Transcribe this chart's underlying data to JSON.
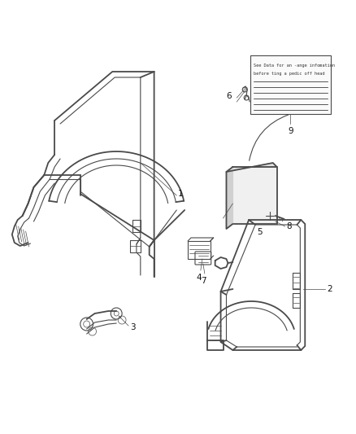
{
  "background_color": "#ffffff",
  "line_color": "#4a4a4a",
  "label_fontsize": 7.5,
  "figsize": [
    4.38,
    5.33
  ],
  "dpi": 100,
  "note_text_line1": "See Data for an -ange infomation",
  "note_text_line2": "before ting a pedic off head"
}
